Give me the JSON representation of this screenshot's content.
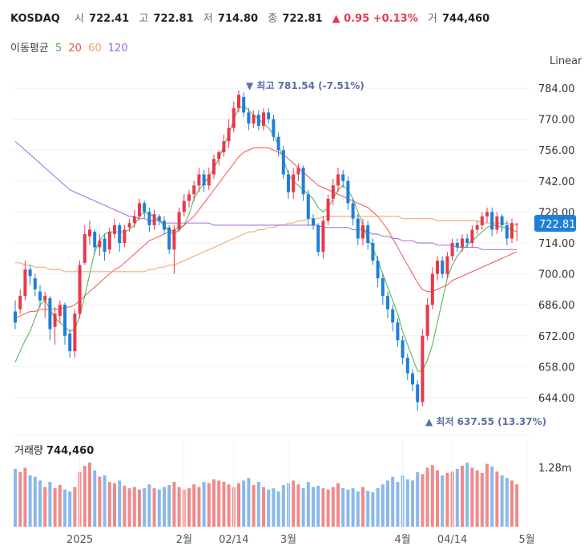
{
  "header": {
    "symbol": "KOSDAQ",
    "open_label": "시",
    "open": "722.41",
    "high_label": "고",
    "high": "722.81",
    "low_label": "저",
    "low": "714.80",
    "close_label": "종",
    "close": "722.81",
    "change": "▲ 0.95 +0.13%",
    "volume_label": "거",
    "volume": "744,460"
  },
  "ma_legend": {
    "title": "이동평균",
    "items": [
      {
        "label": "5",
        "color": "#4caf50"
      },
      {
        "label": "20",
        "color": "#ef5350"
      },
      {
        "label": "60",
        "color": "#f0a060"
      },
      {
        "label": "120",
        "color": "#9c6ade"
      }
    ]
  },
  "scale_label": "Linear",
  "last_price_tag": "722.81",
  "annotations": {
    "max": "▼ 최고 781.54 (-7.51%)",
    "min": "▲ 최저 637.55 (13.37%)"
  },
  "volume_panel": {
    "label": "거래량",
    "value": "744,460",
    "axis_tick": "1.28m"
  },
  "colors": {
    "up": "#e8394a",
    "down": "#1e7fd8",
    "vol_up": "#f08a8a",
    "vol_down": "#8ab8ea"
  },
  "chart_data": {
    "type": "candlestick",
    "y_ticks": [
      784.0,
      770.0,
      756.0,
      742.0,
      728.0,
      714.0,
      700.0,
      686.0,
      672.0,
      658.0,
      644.0
    ],
    "ylim": [
      632,
      792
    ],
    "x_labels": [
      {
        "label": "2025",
        "index": 13
      },
      {
        "label": "2월",
        "index": 34
      },
      {
        "label": "02/14",
        "index": 44
      },
      {
        "label": "3월",
        "index": 55
      },
      {
        "label": "4월",
        "index": 78
      },
      {
        "label": "04/14",
        "index": 88
      },
      {
        "label": "5월",
        "index": 103
      }
    ],
    "candles": [
      [
        683,
        678,
        688,
        675
      ],
      [
        684,
        690,
        693,
        682
      ],
      [
        690,
        702,
        706,
        688
      ],
      [
        702,
        699,
        704,
        695
      ],
      [
        698,
        693,
        700,
        690
      ],
      [
        692,
        688,
        695,
        685
      ],
      [
        688,
        690,
        692,
        680
      ],
      [
        689,
        675,
        690,
        670
      ],
      [
        676,
        682,
        685,
        668
      ],
      [
        681,
        686,
        688,
        678
      ],
      [
        686,
        672,
        687,
        668
      ],
      [
        673,
        665,
        675,
        662
      ],
      [
        665,
        682,
        684,
        662
      ],
      [
        682,
        704,
        706,
        680
      ],
      [
        705,
        718,
        722,
        704
      ],
      [
        717,
        720,
        724,
        713
      ],
      [
        719,
        712,
        720,
        709
      ],
      [
        712,
        715,
        718,
        708
      ],
      [
        716,
        710,
        718,
        706
      ],
      [
        711,
        719,
        721,
        709
      ],
      [
        718,
        722,
        725,
        716
      ],
      [
        722,
        714,
        723,
        710
      ],
      [
        714,
        720,
        722,
        712
      ],
      [
        721,
        723,
        725,
        719
      ],
      [
        723,
        726,
        729,
        721
      ],
      [
        726,
        732,
        734,
        724
      ],
      [
        732,
        728,
        733,
        725
      ],
      [
        728,
        722,
        730,
        719
      ],
      [
        722,
        727,
        729,
        720
      ],
      [
        726,
        724,
        727,
        722
      ],
      [
        724,
        720,
        726,
        718
      ],
      [
        721,
        711,
        722,
        709
      ],
      [
        711,
        720,
        722,
        700
      ],
      [
        720,
        728,
        730,
        719
      ],
      [
        728,
        733,
        736,
        726
      ],
      [
        733,
        736,
        738,
        730
      ],
      [
        736,
        740,
        742,
        733
      ],
      [
        740,
        745,
        748,
        737
      ],
      [
        745,
        740,
        747,
        737
      ],
      [
        740,
        745,
        748,
        738
      ],
      [
        745,
        752,
        754,
        743
      ],
      [
        752,
        755,
        756,
        749
      ],
      [
        755,
        760,
        763,
        753
      ],
      [
        760,
        766,
        770,
        757
      ],
      [
        766,
        775,
        778,
        764
      ],
      [
        775,
        781,
        783,
        773
      ],
      [
        780,
        773,
        782,
        771
      ],
      [
        773,
        768,
        775,
        765
      ],
      [
        768,
        772,
        774,
        766
      ],
      [
        772,
        767,
        774,
        765
      ],
      [
        767,
        773,
        775,
        765
      ],
      [
        773,
        770,
        775,
        768
      ],
      [
        770,
        762,
        772,
        760
      ],
      [
        762,
        756,
        764,
        753
      ],
      [
        756,
        745,
        758,
        743
      ],
      [
        745,
        737,
        747,
        734
      ],
      [
        737,
        745,
        748,
        734
      ],
      [
        745,
        748,
        750,
        742
      ],
      [
        748,
        736,
        749,
        733
      ],
      [
        736,
        725,
        738,
        722
      ],
      [
        725,
        722,
        727,
        720
      ],
      [
        722,
        710,
        723,
        708
      ],
      [
        710,
        724,
        726,
        707
      ],
      [
        724,
        734,
        736,
        722
      ],
      [
        734,
        740,
        743,
        731
      ],
      [
        740,
        745,
        748,
        737
      ],
      [
        745,
        742,
        747,
        739
      ],
      [
        742,
        732,
        744,
        729
      ],
      [
        732,
        725,
        734,
        722
      ],
      [
        725,
        716,
        727,
        713
      ],
      [
        716,
        722,
        725,
        713
      ],
      [
        722,
        714,
        724,
        711
      ],
      [
        714,
        706,
        716,
        704
      ],
      [
        706,
        698,
        708,
        694
      ],
      [
        698,
        690,
        700,
        686
      ],
      [
        690,
        684,
        692,
        680
      ],
      [
        684,
        678,
        686,
        674
      ],
      [
        678,
        670,
        680,
        667
      ],
      [
        670,
        662,
        672,
        659
      ],
      [
        662,
        655,
        664,
        652
      ],
      [
        655,
        650,
        657,
        647
      ],
      [
        650,
        642,
        652,
        638
      ],
      [
        642,
        672,
        675,
        640
      ],
      [
        672,
        686,
        689,
        670
      ],
      [
        686,
        700,
        703,
        684
      ],
      [
        700,
        706,
        708,
        697
      ],
      [
        706,
        700,
        708,
        698
      ],
      [
        700,
        708,
        710,
        698
      ],
      [
        708,
        714,
        716,
        706
      ],
      [
        714,
        712,
        716,
        710
      ],
      [
        712,
        716,
        718,
        710
      ],
      [
        716,
        714,
        718,
        712
      ],
      [
        714,
        720,
        722,
        712
      ],
      [
        720,
        722,
        724,
        718
      ],
      [
        722,
        726,
        728,
        720
      ],
      [
        726,
        728,
        730,
        723
      ],
      [
        728,
        720,
        730,
        717
      ],
      [
        720,
        726,
        728,
        718
      ],
      [
        726,
        722,
        727,
        719
      ],
      [
        722,
        716,
        724,
        713
      ],
      [
        716,
        723,
        725,
        714
      ],
      [
        722.41,
        722.81,
        722.81,
        714.8
      ]
    ],
    "ma": {
      "ma5": [
        660,
        665,
        670,
        674,
        680,
        686,
        688,
        684,
        680,
        678,
        676,
        674,
        675,
        681,
        690,
        700,
        710,
        715,
        718,
        719,
        719,
        719,
        719,
        720,
        722,
        726,
        728,
        727,
        726,
        724,
        722,
        719,
        718,
        720,
        722,
        727,
        734,
        738,
        741,
        744,
        748,
        752,
        758,
        763,
        770,
        775,
        776,
        774,
        772,
        770,
        768,
        766,
        763,
        758,
        752,
        745,
        742,
        740,
        738,
        736,
        734,
        730,
        728,
        730,
        734,
        738,
        740,
        738,
        734,
        728,
        722,
        716,
        712,
        706,
        700,
        694,
        688,
        682,
        674,
        668,
        662,
        656,
        656,
        661,
        668,
        678,
        688,
        698,
        704,
        708,
        711,
        713,
        715,
        717,
        719,
        721,
        722,
        722,
        721,
        721,
        720,
        719
      ],
      "ma20": [
        680,
        681,
        682,
        683,
        683,
        684,
        684,
        684,
        684,
        684,
        685,
        685,
        686,
        688,
        690,
        692,
        694,
        696,
        698,
        700,
        702,
        703,
        705,
        707,
        709,
        711,
        713,
        715,
        716,
        717,
        718,
        719,
        720,
        721,
        722,
        724,
        726,
        729,
        732,
        735,
        738,
        741,
        744,
        747,
        750,
        753,
        755,
        756,
        757,
        757,
        757,
        757,
        756,
        755,
        754,
        752,
        750,
        748,
        746,
        744,
        742,
        740,
        739,
        738,
        737,
        736,
        735,
        734,
        733,
        732,
        731,
        730,
        728,
        726,
        723,
        720,
        716,
        712,
        708,
        704,
        700,
        696,
        693,
        692,
        692,
        693,
        694,
        695,
        697,
        698,
        699,
        700,
        701,
        702,
        703,
        704,
        705,
        706,
        707,
        708,
        709,
        710
      ],
      "ma60": [
        705,
        705,
        704,
        704,
        703,
        703,
        703,
        702,
        702,
        702,
        701,
        701,
        701,
        701,
        701,
        701,
        701,
        701,
        701,
        701,
        701,
        701,
        701,
        701,
        701,
        701,
        701,
        702,
        702,
        703,
        703,
        704,
        704,
        705,
        706,
        707,
        708,
        709,
        710,
        711,
        712,
        713,
        714,
        715,
        716,
        717,
        718,
        719,
        719,
        720,
        720,
        721,
        721,
        722,
        722,
        723,
        723,
        724,
        724,
        725,
        725,
        725,
        726,
        726,
        726,
        726,
        726,
        726,
        726,
        726,
        726,
        726,
        726,
        726,
        726,
        726,
        726,
        726,
        725,
        725,
        725,
        725,
        725,
        725,
        725,
        724,
        724,
        724,
        724,
        724,
        724,
        724,
        724,
        724,
        723,
        723,
        723,
        723,
        723,
        723,
        722,
        722
      ],
      "ma120": [
        760,
        758,
        756,
        754,
        752,
        750,
        748,
        746,
        744,
        742,
        740,
        738,
        737,
        736,
        735,
        734,
        733,
        732,
        731,
        730,
        729,
        728,
        727,
        726,
        726,
        725,
        725,
        724,
        724,
        724,
        723,
        723,
        723,
        723,
        723,
        723,
        723,
        723,
        723,
        723,
        722,
        722,
        722,
        722,
        722,
        722,
        722,
        722,
        722,
        722,
        722,
        722,
        722,
        722,
        722,
        722,
        722,
        722,
        722,
        722,
        722,
        722,
        721,
        721,
        721,
        721,
        721,
        721,
        720,
        720,
        720,
        719,
        718,
        718,
        717,
        717,
        716,
        716,
        715,
        715,
        715,
        714,
        714,
        714,
        714,
        713,
        713,
        713,
        713,
        712,
        712,
        712,
        712,
        712,
        711,
        711,
        711,
        711,
        711,
        711,
        711,
        711
      ]
    },
    "volume": [
      0.9,
      0.85,
      0.92,
      0.8,
      0.78,
      0.72,
      0.62,
      0.7,
      0.6,
      0.65,
      0.58,
      0.55,
      0.62,
      0.85,
      0.95,
      1.0,
      0.88,
      0.78,
      0.8,
      0.7,
      0.68,
      0.72,
      0.64,
      0.6,
      0.62,
      0.58,
      0.6,
      0.66,
      0.6,
      0.58,
      0.62,
      0.65,
      0.7,
      0.62,
      0.58,
      0.6,
      0.66,
      0.62,
      0.7,
      0.68,
      0.74,
      0.72,
      0.7,
      0.66,
      0.62,
      0.68,
      0.72,
      0.76,
      0.65,
      0.7,
      0.62,
      0.58,
      0.6,
      0.55,
      0.65,
      0.68,
      0.72,
      0.66,
      0.6,
      0.7,
      0.62,
      0.64,
      0.6,
      0.58,
      0.62,
      0.68,
      0.6,
      0.58,
      0.6,
      0.55,
      0.62,
      0.56,
      0.54,
      0.6,
      0.66,
      0.72,
      0.78,
      0.7,
      0.8,
      0.74,
      0.72,
      0.85,
      0.82,
      0.92,
      0.96,
      0.88,
      0.8,
      0.84,
      0.86,
      0.9,
      0.95,
      1.0,
      0.92,
      0.88,
      0.84,
      0.98,
      0.94,
      0.86,
      0.8,
      0.76,
      0.72,
      0.66
    ]
  }
}
